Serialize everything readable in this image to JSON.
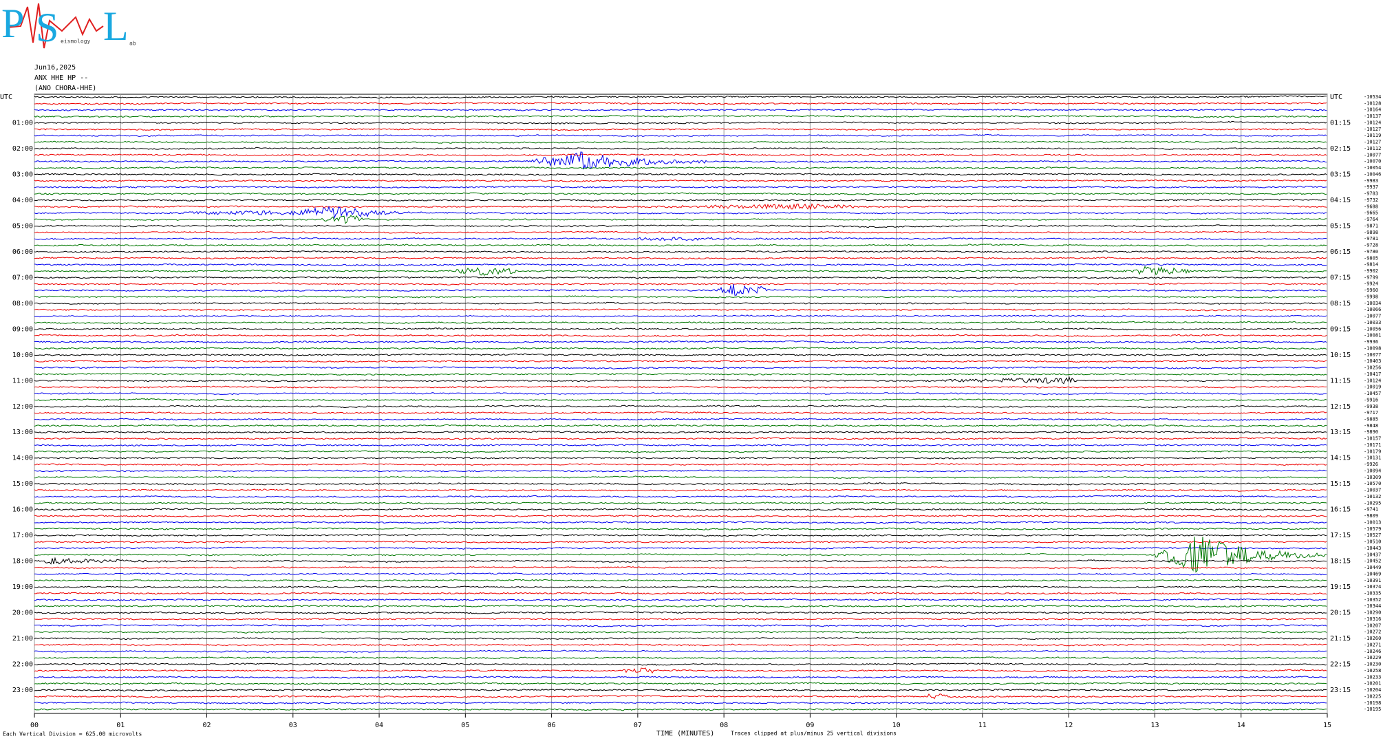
{
  "logo": {
    "letters": [
      "P",
      "S",
      "L"
    ],
    "words": [
      "eismology",
      "ab"
    ]
  },
  "header": {
    "date": "Jun16,2025",
    "station": "ANX HHE HP --",
    "location": "(ANO CHORA-HHE)"
  },
  "left_labels": [
    "UTC",
    "01:00",
    "02:00",
    "03:00",
    "04:00",
    "05:00",
    "06:00",
    "07:00",
    "08:00",
    "09:00",
    "10:00",
    "11:00",
    "12:00",
    "13:00",
    "14:00",
    "15:00",
    "16:00",
    "17:00",
    "18:00",
    "19:00",
    "20:00",
    "21:00",
    "22:00",
    "23:00"
  ],
  "right_labels": [
    "UTC",
    "01:15",
    "02:15",
    "03:15",
    "04:15",
    "05:15",
    "06:15",
    "07:15",
    "08:15",
    "09:15",
    "10:15",
    "11:15",
    "12:15",
    "13:15",
    "14:15",
    "15:15",
    "16:15",
    "17:15",
    "18:15",
    "19:15",
    "20:15",
    "21:15",
    "22:15",
    "23:15"
  ],
  "trace_offsets": [
    -10534,
    -10128,
    -10164,
    -10137,
    -10124,
    -10127,
    -10119,
    -10127,
    -10112,
    -10077,
    -10070,
    -10054,
    -10046,
    -9983,
    -9937,
    -9783,
    -9732,
    -9688,
    -9665,
    -9764,
    -9871,
    -9898,
    -9781,
    -9728,
    -9780,
    -9805,
    -9814,
    -9902,
    -9799,
    -9924,
    -9960,
    -9998,
    -10034,
    -10066,
    -10077,
    -10033,
    -10056,
    -10081,
    -9936,
    -10098,
    -10077,
    -10403,
    -10256,
    -10417,
    -10124,
    -10019,
    -10457,
    -9916,
    -9938,
    -9717,
    -9885,
    -9848,
    -9890,
    -10157,
    -10171,
    -10179,
    -10131,
    -9926,
    -10094,
    -10309,
    -10570,
    -10037,
    -10132,
    -10295,
    -9741,
    -9809,
    -10013,
    -10579,
    -10527,
    -10510,
    -10443,
    -10437,
    -10452,
    -10449,
    -10469,
    -10391,
    -10374,
    -10335,
    -10352,
    -10344,
    -10290,
    -10316,
    -10207,
    -10272,
    -10260,
    -10271,
    -10246,
    -10229,
    -10230,
    -10258,
    -10233,
    -10201,
    -10204,
    -10225,
    -10198,
    -10195
  ],
  "x_ticks": [
    "00",
    "01",
    "02",
    "03",
    "04",
    "05",
    "06",
    "07",
    "08",
    "09",
    "10",
    "11",
    "12",
    "13",
    "14",
    "15"
  ],
  "footer": {
    "scale": "Each Vertical Division =  625.00 microvolts",
    "x_label": "TIME (MINUTES)",
    "clip_note": "Traces clipped at plus/minus 25 vertical divisions"
  }
}
